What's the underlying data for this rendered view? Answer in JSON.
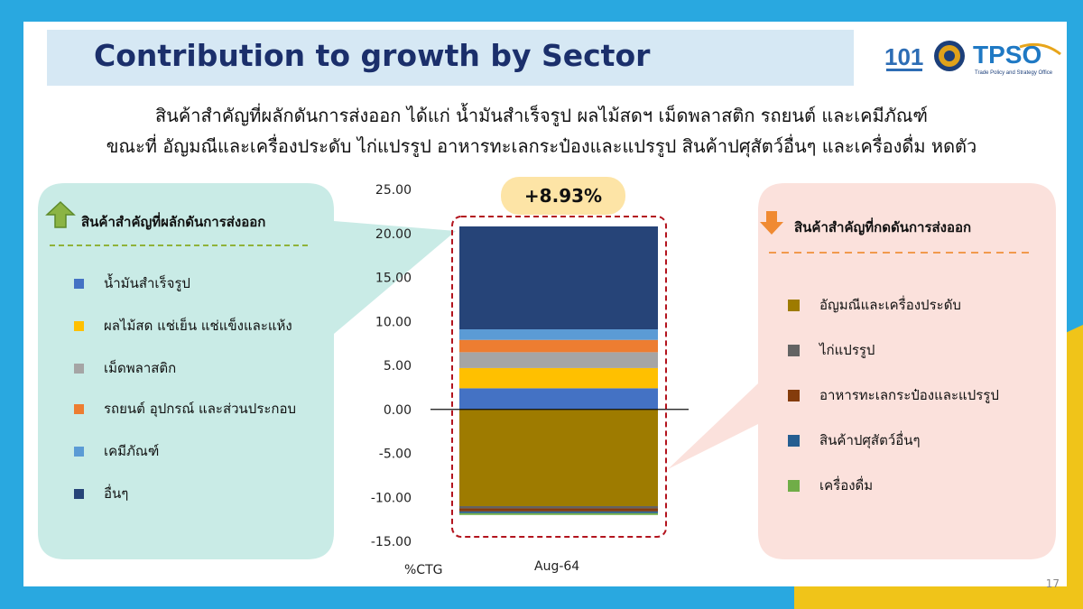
{
  "slide": {
    "title": "Contribution to growth by Sector",
    "subtitle_line1": "สินค้าสำคัญที่ผลักดันการส่งออก ได้แก่ น้ำมันสำเร็จรูป ผลไม้สดฯ เม็ดพลาสติก รถยนต์ และเคมีภัณฑ์",
    "subtitle_line2": "ขณะที่ อัญมณีและเครื่องประดับ ไก่แปรรูป อาหารทะเลกระป๋องและแปรรูป สินค้าปศุสัตว์อื่นๆ และเครื่องดื่ม หดตัว",
    "page_number": "17",
    "logos": [
      "moc-logo",
      "ministry-seal",
      "tpso-logo"
    ],
    "tpso_text": "TPSO",
    "tpso_caption": "Trade Policy and Strategy Office"
  },
  "left_panel": {
    "title": "สินค้าสำคัญที่ผลักดันการส่งออก",
    "icon": "arrow-up-icon",
    "items": [
      {
        "label": "น้ำมันสำเร็จรูป",
        "color": "#4472c4"
      },
      {
        "label": "ผลไม้สด แช่เย็น แช่แข็งและแห้ง",
        "color": "#ffc000"
      },
      {
        "label": "เม็ดพลาสติก",
        "color": "#a5a5a5"
      },
      {
        "label": "รถยนต์ อุปกรณ์ และส่วนประกอบ",
        "color": "#ed7d31"
      },
      {
        "label": "เคมีภัณฑ์",
        "color": "#5b9bd5"
      },
      {
        "label": "อื่นๆ",
        "color": "#264478"
      }
    ]
  },
  "right_panel": {
    "title": "สินค้าสำคัญที่กดดันการส่งออก",
    "icon": "arrow-down-icon",
    "items": [
      {
        "label": "อัญมณีและเครื่องประดับ",
        "color": "#9e7b00"
      },
      {
        "label": "ไก่แปรรูป",
        "color": "#636363"
      },
      {
        "label": "อาหารทะเลกระป๋องและแปรรูป",
        "color": "#843c0c"
      },
      {
        "label": "สินค้าปศุสัตว์อื่นๆ",
        "color": "#255e91"
      },
      {
        "label": "เครื่องดื่ม",
        "color": "#70ad47"
      }
    ]
  },
  "chart_data": {
    "type": "bar",
    "stacked": true,
    "categories": [
      "Aug-64"
    ],
    "ylabel": "%CTG",
    "ylim": [
      -15,
      25
    ],
    "yticks": [
      "25.00",
      "20.00",
      "15.00",
      "10.00",
      "5.00",
      "0.00",
      "-5.00",
      "-10.00",
      "-15.00"
    ],
    "total_label": "+8.93%",
    "series": [
      {
        "name": "น้ำมันสำเร็จรูป",
        "values": [
          2.4
        ],
        "color": "#4472c4"
      },
      {
        "name": "ผลไม้สด แช่เย็น แช่แข็งและแห้ง",
        "values": [
          2.3
        ],
        "color": "#ffc000"
      },
      {
        "name": "เม็ดพลาสติก",
        "values": [
          1.8
        ],
        "color": "#a5a5a5"
      },
      {
        "name": "รถยนต์ อุปกรณ์ และส่วนประกอบ",
        "values": [
          1.4
        ],
        "color": "#ed7d31"
      },
      {
        "name": "เคมีภัณฑ์",
        "values": [
          1.2
        ],
        "color": "#5b9bd5"
      },
      {
        "name": "อื่นๆ",
        "values": [
          11.7
        ],
        "color": "#264478"
      },
      {
        "name": "อัญมณีและเครื่องประดับ",
        "values": [
          -11.0
        ],
        "color": "#9e7b00"
      },
      {
        "name": "ไก่แปรรูป",
        "values": [
          -0.25
        ],
        "color": "#636363"
      },
      {
        "name": "อาหารทะเลกระป๋องและแปรรูป",
        "values": [
          -0.35
        ],
        "color": "#843c0c"
      },
      {
        "name": "สินค้าปศุสัตว์อื่นๆ",
        "values": [
          -0.2
        ],
        "color": "#255e91"
      },
      {
        "name": "เครื่องดื่ม",
        "values": [
          -0.2
        ],
        "color": "#70ad47"
      }
    ]
  }
}
